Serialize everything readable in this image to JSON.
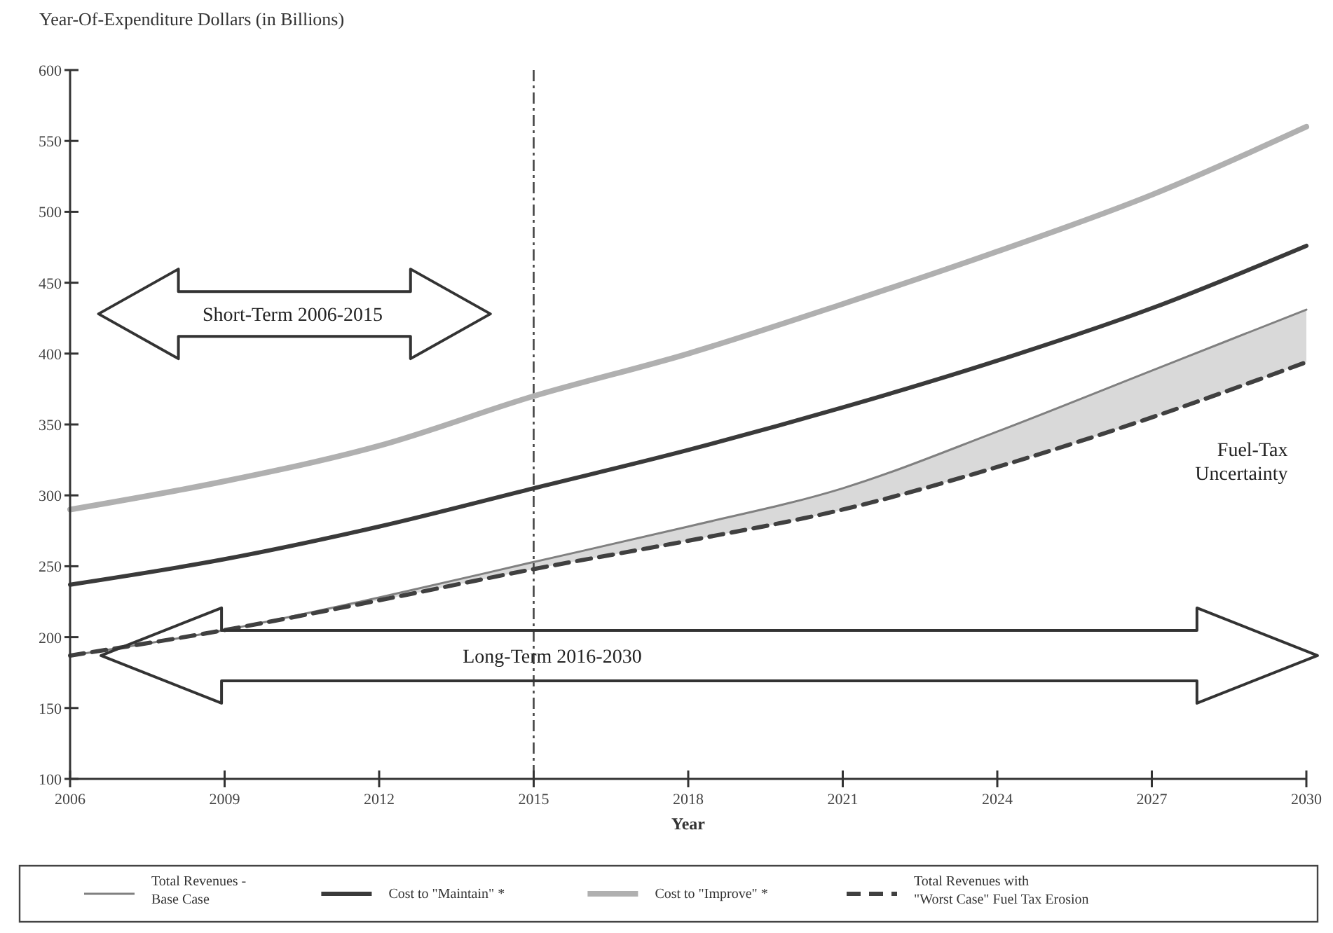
{
  "chart_data": {
    "type": "line",
    "ylabel": "Year-Of-Expenditure Dollars (in Billions)",
    "xlabel": "Year",
    "x": [
      2006,
      2009,
      2012,
      2015,
      2018,
      2021,
      2024,
      2027,
      2030
    ],
    "series": [
      {
        "name": "Total Revenues - Base Case",
        "color": "#808080",
        "values": [
          187,
          205,
          228,
          253,
          278,
          305,
          345,
          388,
          431
        ]
      },
      {
        "name": "Cost to \"Maintain\" *",
        "color": "#3a3a3a",
        "values": [
          237,
          255,
          278,
          305,
          332,
          362,
          395,
          432,
          476
        ]
      },
      {
        "name": "Cost to \"Improve\" *",
        "color": "#b0b0b0",
        "values": [
          290,
          310,
          335,
          370,
          400,
          435,
          472,
          512,
          560
        ]
      },
      {
        "name": "Total Revenues with \"Worst Case\" Fuel Tax Erosion",
        "color": "#404040",
        "line_style": "dashed",
        "values": [
          187,
          205,
          226,
          248,
          268,
          290,
          320,
          355,
          394
        ],
        "lower": [
          187,
          205,
          226,
          248,
          268,
          290,
          320,
          355,
          394
        ],
        "upper": [
          187,
          205,
          228,
          253,
          278,
          305,
          345,
          388,
          431
        ]
      }
    ],
    "xlim": [
      2006,
      2030
    ],
    "xticks": [
      2006,
      2009,
      2012,
      2015,
      2018,
      2021,
      2024,
      2027,
      2030
    ],
    "ylim": [
      100,
      600
    ],
    "yticks": [
      100,
      150,
      200,
      250,
      300,
      350,
      400,
      450,
      500,
      550,
      600
    ],
    "ref_lines": [
      {
        "axis": "x",
        "value": 2015,
        "line_style": "dashdot"
      }
    ],
    "annotations": [
      "Short-Term 2006-2015",
      "Long-Term 2016-2030",
      "Fuel-Tax Uncertainty"
    ],
    "legend": "bottom",
    "grid": false,
    "marker": "none"
  }
}
